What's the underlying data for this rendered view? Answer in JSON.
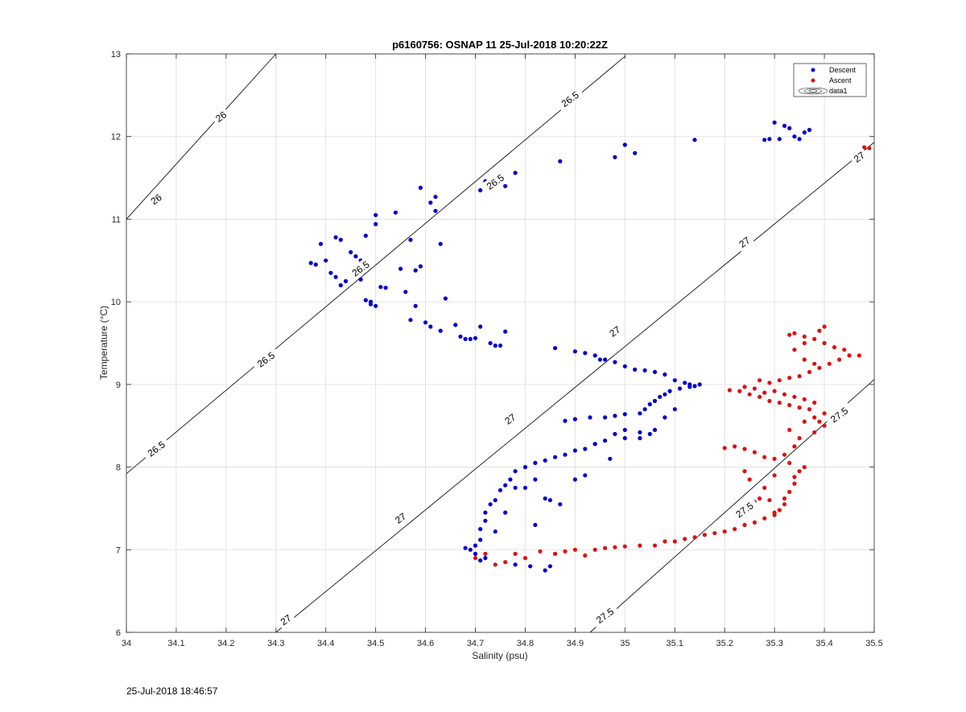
{
  "footer": {
    "timestamp": "25-Jul-2018 18:46:57"
  },
  "chart_data": {
    "type": "scatter",
    "title": "p6160756: OSNAP 11 25-Jul-2018 10:20:22Z",
    "xlabel": "Salinity (psu)",
    "ylabel": "Temperature (°C)",
    "xlim": [
      34.0,
      35.5
    ],
    "ylim": [
      6,
      13
    ],
    "xticks": [
      "34",
      "34.1",
      "34.2",
      "34.3",
      "34.4",
      "34.5",
      "34.6",
      "34.7",
      "34.8",
      "34.9",
      "35",
      "35.1",
      "35.2",
      "35.3",
      "35.4",
      "35.5"
    ],
    "yticks": [
      "6",
      "7",
      "8",
      "9",
      "10",
      "11",
      "12",
      "13"
    ],
    "grid": true,
    "legend_position": "top-right",
    "series": [
      {
        "name": "Descent",
        "color": "#0000cc",
        "points": [
          [
            34.37,
            10.47
          ],
          [
            34.38,
            10.45
          ],
          [
            34.39,
            10.7
          ],
          [
            34.4,
            10.5
          ],
          [
            34.41,
            10.35
          ],
          [
            34.42,
            10.78
          ],
          [
            34.43,
            10.75
          ],
          [
            34.42,
            10.3
          ],
          [
            34.43,
            10.2
          ],
          [
            34.44,
            10.25
          ],
          [
            34.45,
            10.35
          ],
          [
            34.46,
            10.4
          ],
          [
            34.45,
            10.6
          ],
          [
            34.46,
            10.55
          ],
          [
            34.47,
            10.5
          ],
          [
            34.48,
            10.8
          ],
          [
            34.47,
            10.27
          ],
          [
            34.48,
            10.02
          ],
          [
            34.49,
            10.0
          ],
          [
            34.5,
            9.95
          ],
          [
            34.49,
            9.97
          ],
          [
            34.5,
            10.94
          ],
          [
            34.5,
            11.05
          ],
          [
            34.51,
            10.18
          ],
          [
            34.52,
            10.17
          ],
          [
            34.54,
            11.08
          ],
          [
            34.55,
            10.4
          ],
          [
            34.56,
            10.12
          ],
          [
            34.57,
            10.75
          ],
          [
            34.57,
            9.78
          ],
          [
            34.58,
            9.95
          ],
          [
            34.58,
            10.38
          ],
          [
            34.59,
            10.43
          ],
          [
            34.59,
            11.38
          ],
          [
            34.6,
            9.75
          ],
          [
            34.61,
            9.7
          ],
          [
            34.61,
            11.2
          ],
          [
            34.62,
            11.1
          ],
          [
            34.62,
            11.27
          ],
          [
            34.63,
            10.7
          ],
          [
            34.63,
            9.65
          ],
          [
            34.64,
            10.04
          ],
          [
            34.66,
            9.72
          ],
          [
            34.67,
            9.58
          ],
          [
            34.68,
            9.55
          ],
          [
            34.69,
            9.55
          ],
          [
            34.7,
            9.56
          ],
          [
            34.71,
            9.7
          ],
          [
            34.73,
            9.5
          ],
          [
            34.74,
            9.47
          ],
          [
            34.75,
            9.47
          ],
          [
            34.76,
            9.64
          ],
          [
            34.71,
            11.35
          ],
          [
            34.72,
            11.46
          ],
          [
            34.76,
            11.4
          ],
          [
            34.78,
            11.56
          ],
          [
            34.87,
            11.7
          ],
          [
            34.98,
            11.75
          ],
          [
            35.0,
            11.9
          ],
          [
            35.02,
            11.8
          ],
          [
            35.14,
            11.96
          ],
          [
            35.28,
            11.96
          ],
          [
            35.29,
            11.97
          ],
          [
            35.3,
            12.17
          ],
          [
            35.31,
            11.97
          ],
          [
            35.32,
            12.13
          ],
          [
            35.33,
            12.1
          ],
          [
            35.34,
            12.0
          ],
          [
            35.35,
            11.97
          ],
          [
            35.36,
            12.05
          ],
          [
            35.37,
            12.08
          ],
          [
            34.86,
            9.44
          ],
          [
            34.9,
            9.4
          ],
          [
            34.92,
            9.38
          ],
          [
            34.94,
            9.35
          ],
          [
            34.95,
            9.3
          ],
          [
            34.96,
            9.3
          ],
          [
            34.98,
            9.27
          ],
          [
            35.0,
            9.22
          ],
          [
            35.02,
            9.18
          ],
          [
            35.04,
            9.17
          ],
          [
            35.06,
            9.15
          ],
          [
            35.08,
            9.12
          ],
          [
            35.1,
            9.05
          ],
          [
            35.12,
            9.02
          ],
          [
            35.13,
            9.0
          ],
          [
            35.14,
            8.98
          ],
          [
            35.15,
            9.0
          ],
          [
            35.13,
            8.97
          ],
          [
            35.11,
            8.95
          ],
          [
            35.09,
            8.92
          ],
          [
            35.08,
            8.88
          ],
          [
            35.07,
            8.85
          ],
          [
            35.06,
            8.8
          ],
          [
            35.05,
            8.76
          ],
          [
            35.04,
            8.7
          ],
          [
            35.03,
            8.65
          ],
          [
            35.0,
            8.64
          ],
          [
            34.98,
            8.62
          ],
          [
            34.96,
            8.6
          ],
          [
            34.93,
            8.6
          ],
          [
            34.9,
            8.58
          ],
          [
            34.88,
            8.56
          ],
          [
            35.06,
            8.45
          ],
          [
            35.03,
            8.42
          ],
          [
            35.0,
            8.45
          ],
          [
            34.98,
            8.4
          ],
          [
            34.96,
            8.32
          ],
          [
            34.94,
            8.28
          ],
          [
            34.92,
            8.22
          ],
          [
            34.9,
            8.2
          ],
          [
            34.88,
            8.15
          ],
          [
            34.86,
            8.12
          ],
          [
            34.84,
            8.08
          ],
          [
            34.82,
            8.05
          ],
          [
            34.8,
            8.0
          ],
          [
            34.78,
            7.95
          ],
          [
            34.77,
            7.85
          ],
          [
            34.76,
            7.78
          ],
          [
            34.75,
            7.72
          ],
          [
            34.74,
            7.6
          ],
          [
            34.73,
            7.55
          ],
          [
            34.72,
            7.45
          ],
          [
            34.72,
            7.35
          ],
          [
            34.71,
            7.25
          ],
          [
            34.71,
            7.12
          ],
          [
            34.7,
            7.05
          ],
          [
            34.7,
            6.95
          ],
          [
            34.69,
            7.0
          ],
          [
            34.68,
            7.02
          ],
          [
            34.71,
            6.87
          ],
          [
            34.72,
            6.9
          ],
          [
            34.74,
            7.22
          ],
          [
            34.76,
            7.45
          ],
          [
            34.78,
            7.75
          ],
          [
            34.8,
            7.75
          ],
          [
            34.82,
            7.85
          ],
          [
            34.84,
            7.62
          ],
          [
            34.85,
            7.6
          ],
          [
            34.87,
            7.55
          ],
          [
            34.9,
            7.85
          ],
          [
            34.92,
            7.9
          ],
          [
            34.94,
            8.28
          ],
          [
            34.97,
            8.1
          ],
          [
            35.0,
            8.35
          ],
          [
            35.03,
            8.35
          ],
          [
            35.05,
            8.4
          ],
          [
            35.08,
            8.6
          ],
          [
            35.1,
            8.7
          ],
          [
            34.78,
            6.82
          ],
          [
            34.81,
            6.8
          ],
          [
            34.82,
            7.3
          ],
          [
            34.84,
            6.75
          ],
          [
            34.85,
            6.8
          ]
        ]
      },
      {
        "name": "Ascent",
        "color": "#dd1111",
        "points": [
          [
            34.7,
            6.9
          ],
          [
            34.72,
            6.95
          ],
          [
            34.74,
            6.82
          ],
          [
            34.76,
            6.85
          ],
          [
            34.78,
            6.95
          ],
          [
            34.8,
            6.9
          ],
          [
            34.83,
            6.98
          ],
          [
            34.86,
            6.95
          ],
          [
            34.88,
            6.98
          ],
          [
            34.9,
            7.0
          ],
          [
            34.92,
            6.93
          ],
          [
            34.94,
            7.0
          ],
          [
            34.96,
            7.02
          ],
          [
            34.98,
            7.03
          ],
          [
            35.0,
            7.04
          ],
          [
            35.03,
            7.05
          ],
          [
            35.06,
            7.05
          ],
          [
            35.08,
            7.1
          ],
          [
            35.1,
            7.1
          ],
          [
            35.12,
            7.13
          ],
          [
            35.14,
            7.15
          ],
          [
            35.16,
            7.18
          ],
          [
            35.18,
            7.2
          ],
          [
            35.2,
            7.22
          ],
          [
            35.22,
            7.25
          ],
          [
            35.24,
            7.3
          ],
          [
            35.26,
            7.33
          ],
          [
            35.28,
            7.38
          ],
          [
            35.3,
            7.42
          ],
          [
            35.31,
            7.48
          ],
          [
            35.32,
            7.55
          ],
          [
            35.32,
            7.62
          ],
          [
            35.33,
            7.7
          ],
          [
            35.34,
            7.8
          ],
          [
            35.34,
            7.88
          ],
          [
            35.35,
            7.95
          ],
          [
            35.36,
            8.0
          ],
          [
            35.33,
            8.05
          ],
          [
            35.3,
            8.1
          ],
          [
            35.28,
            8.12
          ],
          [
            35.26,
            8.18
          ],
          [
            35.24,
            8.22
          ],
          [
            35.22,
            8.25
          ],
          [
            35.2,
            8.23
          ],
          [
            35.3,
            7.45
          ],
          [
            35.29,
            7.6
          ],
          [
            35.28,
            7.75
          ],
          [
            35.27,
            7.62
          ],
          [
            35.26,
            7.58
          ],
          [
            35.25,
            7.85
          ],
          [
            35.24,
            7.95
          ],
          [
            35.3,
            7.9
          ],
          [
            35.32,
            8.15
          ],
          [
            35.34,
            8.25
          ],
          [
            35.35,
            8.35
          ],
          [
            35.33,
            8.45
          ],
          [
            35.36,
            8.55
          ],
          [
            35.38,
            8.6
          ],
          [
            35.4,
            8.5
          ],
          [
            35.38,
            8.42
          ],
          [
            35.37,
            8.7
          ],
          [
            35.35,
            8.72
          ],
          [
            35.33,
            8.75
          ],
          [
            35.31,
            8.78
          ],
          [
            35.29,
            8.8
          ],
          [
            35.27,
            8.85
          ],
          [
            35.25,
            8.88
          ],
          [
            35.23,
            8.92
          ],
          [
            35.21,
            8.93
          ],
          [
            35.24,
            8.97
          ],
          [
            35.26,
            8.95
          ],
          [
            35.28,
            8.9
          ],
          [
            35.3,
            8.92
          ],
          [
            35.32,
            8.88
          ],
          [
            35.34,
            8.85
          ],
          [
            35.36,
            8.82
          ],
          [
            35.38,
            8.78
          ],
          [
            35.4,
            8.65
          ],
          [
            35.39,
            8.55
          ],
          [
            35.27,
            9.05
          ],
          [
            35.29,
            9.02
          ],
          [
            35.31,
            9.05
          ],
          [
            35.33,
            9.08
          ],
          [
            35.35,
            9.1
          ],
          [
            35.37,
            9.15
          ],
          [
            35.39,
            9.2
          ],
          [
            35.41,
            9.25
          ],
          [
            35.43,
            9.3
          ],
          [
            35.45,
            9.35
          ],
          [
            35.47,
            9.35
          ],
          [
            35.44,
            9.42
          ],
          [
            35.42,
            9.45
          ],
          [
            35.4,
            9.5
          ],
          [
            35.38,
            9.55
          ],
          [
            35.36,
            9.58
          ],
          [
            35.34,
            9.62
          ],
          [
            35.33,
            9.6
          ],
          [
            35.39,
            9.65
          ],
          [
            35.4,
            9.7
          ],
          [
            35.36,
            9.5
          ],
          [
            35.34,
            9.42
          ],
          [
            35.36,
            9.3
          ],
          [
            35.38,
            9.25
          ],
          [
            35.48,
            11.87
          ],
          [
            35.49,
            11.86
          ]
        ]
      }
    ],
    "legend": [
      "Descent",
      "Ascent",
      "data1"
    ],
    "contours": [
      {
        "label": "26",
        "segments": [
          [
            [
              34.0,
              11.0
            ],
            [
              34.3,
              13.0
            ]
          ]
        ]
      },
      {
        "label": "26.5",
        "segments": [
          [
            [
              34.0,
              7.92
            ],
            [
              35.0,
              12.97
            ]
          ]
        ]
      },
      {
        "label": "27",
        "segments": [
          [
            [
              34.3,
              6.0
            ],
            [
              35.5,
              11.93
            ]
          ]
        ]
      },
      {
        "label": "27.5",
        "segments": [
          [
            [
              34.93,
              6.0
            ],
            [
              35.5,
              9.06
            ]
          ]
        ]
      }
    ],
    "contour_labels": [
      {
        "text": "26",
        "x": 34.06,
        "y": 11.24
      },
      {
        "text": "26",
        "x": 34.19,
        "y": 12.24
      },
      {
        "text": "26.5",
        "x": 34.06,
        "y": 8.22
      },
      {
        "text": "26.5",
        "x": 34.28,
        "y": 9.3
      },
      {
        "text": "26.5",
        "x": 34.47,
        "y": 10.4
      },
      {
        "text": "26.5",
        "x": 34.74,
        "y": 11.45
      },
      {
        "text": "26.5",
        "x": 34.89,
        "y": 12.45
      },
      {
        "text": "27",
        "x": 34.32,
        "y": 6.15
      },
      {
        "text": "27",
        "x": 34.55,
        "y": 7.38
      },
      {
        "text": "27",
        "x": 34.77,
        "y": 8.58
      },
      {
        "text": "27",
        "x": 34.98,
        "y": 9.64
      },
      {
        "text": "27",
        "x": 35.24,
        "y": 10.72
      },
      {
        "text": "27",
        "x": 35.47,
        "y": 11.75
      },
      {
        "text": "27.5",
        "x": 34.96,
        "y": 6.2
      },
      {
        "text": "27.5",
        "x": 35.24,
        "y": 7.48
      },
      {
        "text": "27.5",
        "x": 35.43,
        "y": 8.63
      }
    ]
  }
}
